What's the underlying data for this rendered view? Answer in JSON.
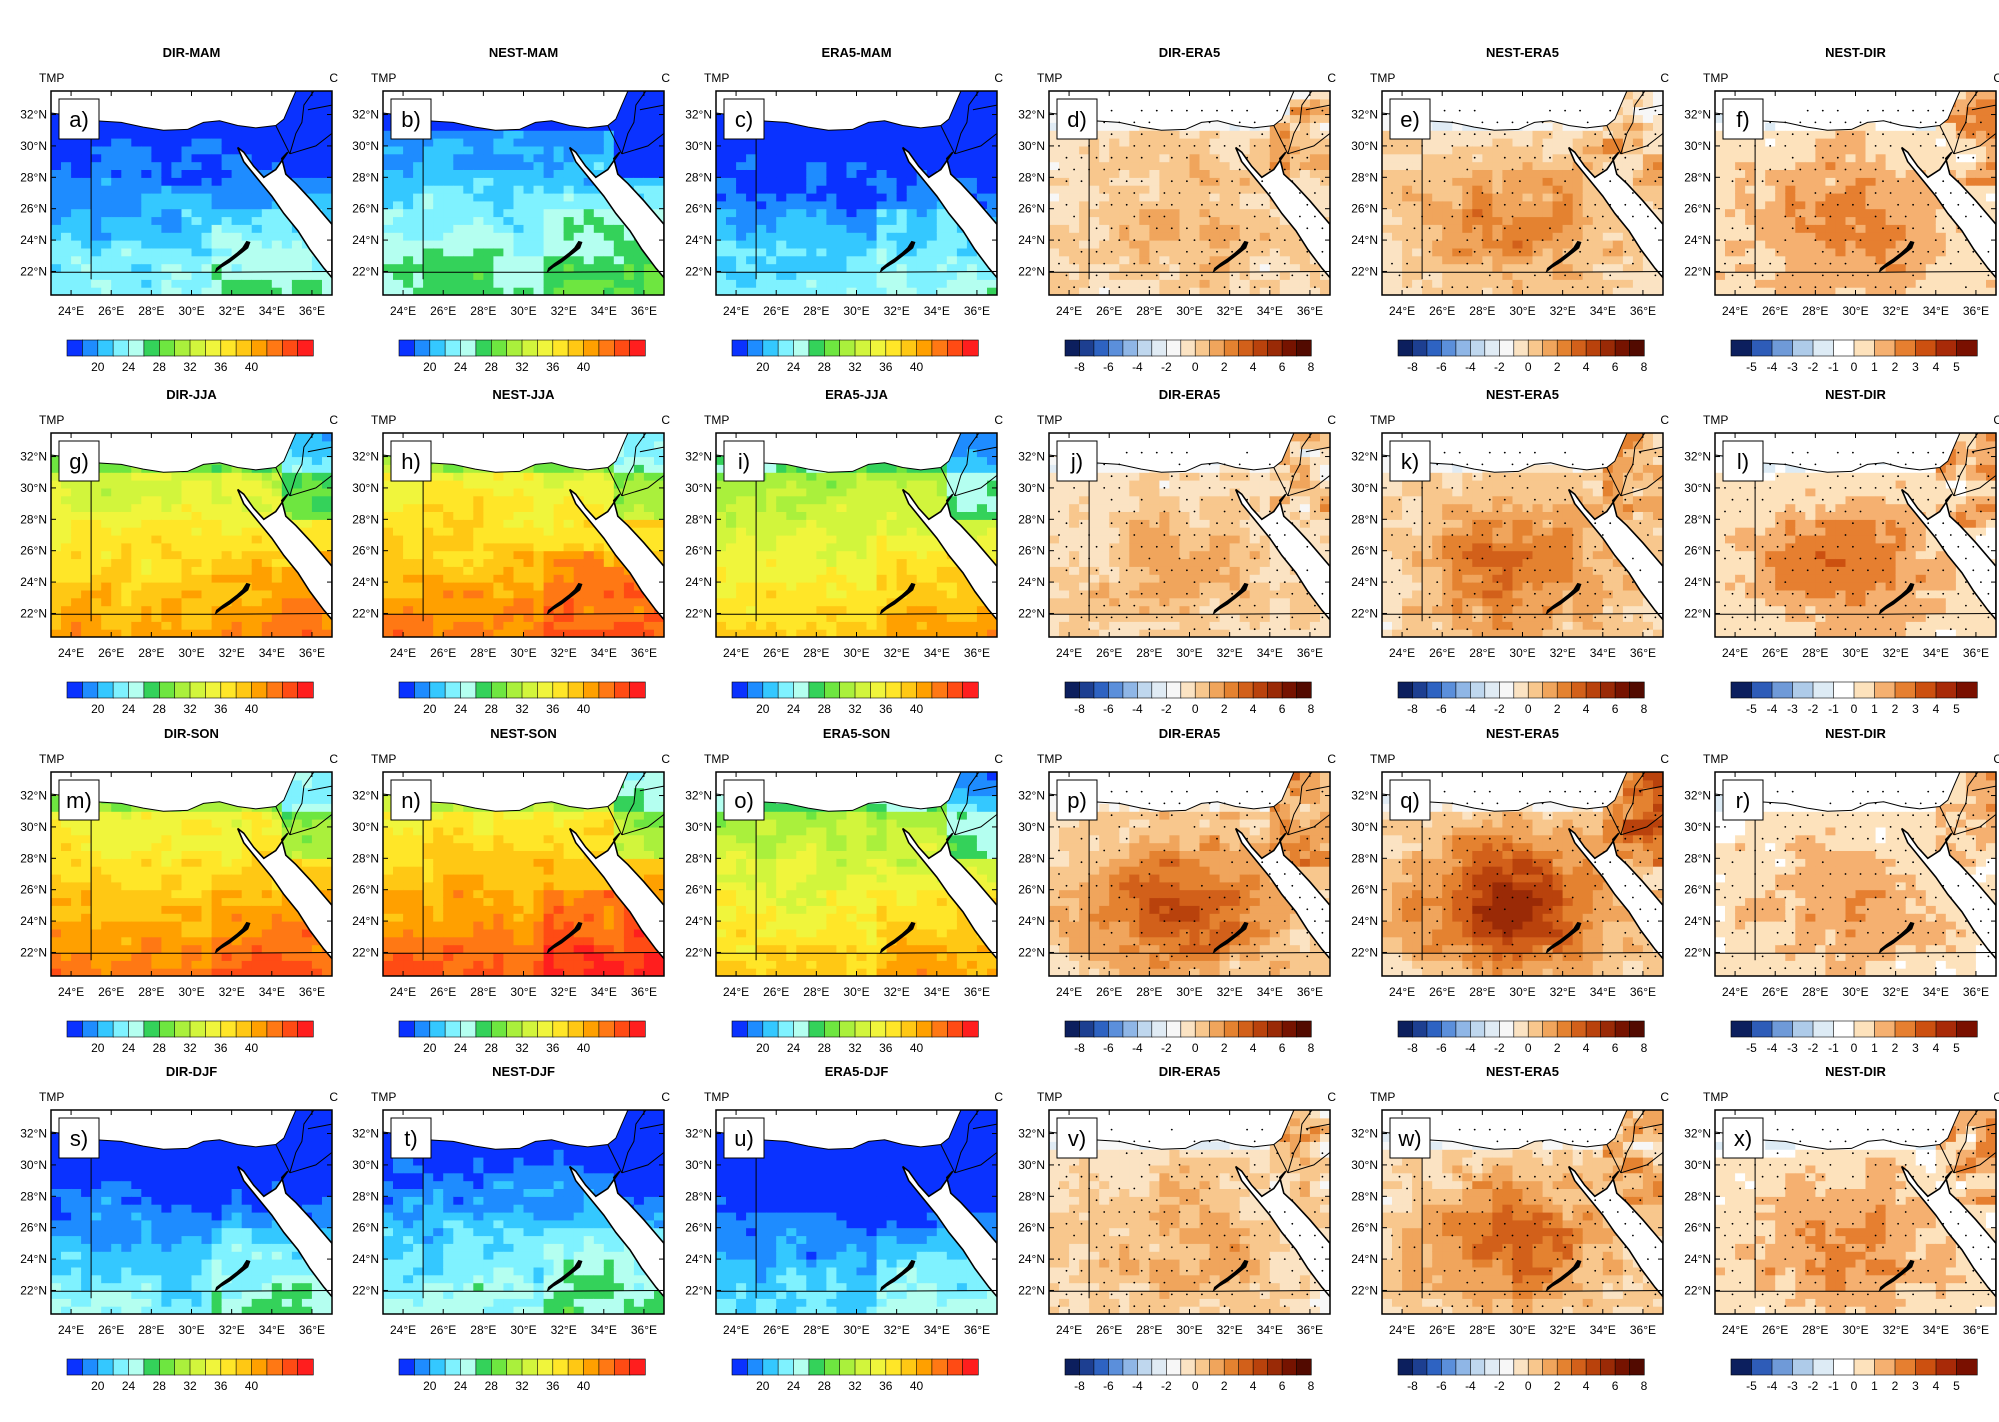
{
  "figure": {
    "panel_type": "heatmap",
    "corner_left": "TMP",
    "corner_right": "C",
    "lat_ticks": [
      "32°N",
      "30°N",
      "28°N",
      "26°N",
      "24°N",
      "22°N"
    ],
    "lon_ticks": [
      "24°E",
      "26°E",
      "28°E",
      "30°E",
      "32°E",
      "34°E",
      "36°E"
    ],
    "colorbars": {
      "abs": {
        "colors": [
          "#0a32ff",
          "#1e8cff",
          "#34c8ff",
          "#7ff2ff",
          "#b4fff0",
          "#34d25a",
          "#6ee640",
          "#aaf03c",
          "#d2f53c",
          "#f0f53c",
          "#ffe628",
          "#ffc814",
          "#ffa000",
          "#ff7814",
          "#ff4b14",
          "#ff1e1e"
        ],
        "labels": [
          "20",
          "24",
          "28",
          "32",
          "36",
          "40"
        ],
        "label_slots": [
          2,
          4,
          6,
          8,
          10,
          12
        ]
      },
      "diff8": {
        "colors": [
          "#0c1f5e",
          "#1d3f91",
          "#2e63c2",
          "#5b8fdb",
          "#8fb6e6",
          "#bfd7ee",
          "#e0ebf4",
          "#f7f7f7",
          "#fbe3c3",
          "#f8c78d",
          "#f0a55c",
          "#e48230",
          "#d2601a",
          "#b9420c",
          "#9a2a06",
          "#761300",
          "#520a00"
        ],
        "labels": [
          "-8",
          "-6",
          "-4",
          "-2",
          "0",
          "2",
          "4",
          "6",
          "8"
        ],
        "label_slots": [
          1,
          3,
          5,
          7,
          9,
          11,
          13,
          15,
          17
        ]
      },
      "diff5": {
        "colors": [
          "#0c1f5e",
          "#2e5cb8",
          "#6f9ad8",
          "#aecbe9",
          "#ddebf5",
          "#ffffff",
          "#fde2bc",
          "#f5b070",
          "#e67f30",
          "#cc5010",
          "#a82a08",
          "#7a1000"
        ],
        "labels": [
          "-5",
          "-4",
          "-3",
          "-2",
          "-1",
          "0",
          "1",
          "2",
          "3",
          "4",
          "5"
        ],
        "label_slots": [
          1,
          2,
          3,
          4,
          5,
          6,
          7,
          8,
          9,
          10,
          11
        ]
      }
    }
  },
  "chart_data": {
    "type": "heatmap",
    "variable": "TMP",
    "units": "C",
    "columns": [
      "DIR",
      "NEST",
      "ERA5",
      "DIR-ERA5",
      "NEST-ERA5",
      "NEST-DIR"
    ],
    "seasons": [
      "MAM",
      "JJA",
      "SON",
      "DJF"
    ],
    "panels": [
      {
        "letter": "a)",
        "title": "DIR-MAM",
        "kind": "abs",
        "season": "MAM",
        "level": 0.1
      },
      {
        "letter": "b)",
        "title": "NEST-MAM",
        "kind": "abs",
        "season": "MAM",
        "level": 0.18
      },
      {
        "letter": "c)",
        "title": "ERA5-MAM",
        "kind": "abs",
        "season": "MAM",
        "level": 0.06
      },
      {
        "letter": "d)",
        "title": "DIR-ERA5",
        "kind": "diff8",
        "season": "MAM",
        "level": 0.18
      },
      {
        "letter": "e)",
        "title": "NEST-ERA5",
        "kind": "diff8",
        "season": "MAM",
        "level": 0.35
      },
      {
        "letter": "f)",
        "title": "NEST-DIR",
        "kind": "diff5",
        "season": "MAM",
        "level": 0.45
      },
      {
        "letter": "g)",
        "title": "DIR-JJA",
        "kind": "abs",
        "season": "JJA",
        "level": 0.62
      },
      {
        "letter": "h)",
        "title": "NEST-JJA",
        "kind": "abs",
        "season": "JJA",
        "level": 0.68
      },
      {
        "letter": "i)",
        "title": "ERA5-JJA",
        "kind": "abs",
        "season": "JJA",
        "level": 0.55
      },
      {
        "letter": "j)",
        "title": "DIR-ERA5",
        "kind": "diff8",
        "season": "JJA",
        "level": 0.2
      },
      {
        "letter": "k)",
        "title": "NEST-ERA5",
        "kind": "diff8",
        "season": "JJA",
        "level": 0.45
      },
      {
        "letter": "l)",
        "title": "NEST-DIR",
        "kind": "diff5",
        "season": "JJA",
        "level": 0.5
      },
      {
        "letter": "m)",
        "title": "DIR-SON",
        "kind": "abs",
        "season": "SON",
        "level": 0.68
      },
      {
        "letter": "n)",
        "title": "NEST-SON",
        "kind": "abs",
        "season": "SON",
        "level": 0.72
      },
      {
        "letter": "o)",
        "title": "ERA5-SON",
        "kind": "abs",
        "season": "SON",
        "level": 0.55
      },
      {
        "letter": "p)",
        "title": "DIR-ERA5",
        "kind": "diff8",
        "season": "SON",
        "level": 0.55
      },
      {
        "letter": "q)",
        "title": "NEST-ERA5",
        "kind": "diff8",
        "season": "SON",
        "level": 0.72
      },
      {
        "letter": "r)",
        "title": "NEST-DIR",
        "kind": "diff5",
        "season": "SON",
        "level": 0.3
      },
      {
        "letter": "s)",
        "title": "DIR-DJF",
        "kind": "abs",
        "season": "DJF",
        "level": 0.08
      },
      {
        "letter": "t)",
        "title": "NEST-DJF",
        "kind": "abs",
        "season": "DJF",
        "level": 0.12
      },
      {
        "letter": "u)",
        "title": "ERA5-DJF",
        "kind": "abs",
        "season": "DJF",
        "level": 0.04
      },
      {
        "letter": "v)",
        "title": "DIR-ERA5",
        "kind": "diff8",
        "season": "DJF",
        "level": 0.22
      },
      {
        "letter": "w)",
        "title": "NEST-ERA5",
        "kind": "diff8",
        "season": "DJF",
        "level": 0.45
      },
      {
        "letter": "x)",
        "title": "NEST-DIR",
        "kind": "diff5",
        "season": "DJF",
        "level": 0.45
      }
    ],
    "lon_range": [
      23,
      37
    ],
    "lat_range": [
      20.5,
      33.5
    ],
    "stippling": "significance dots on difference panels"
  }
}
